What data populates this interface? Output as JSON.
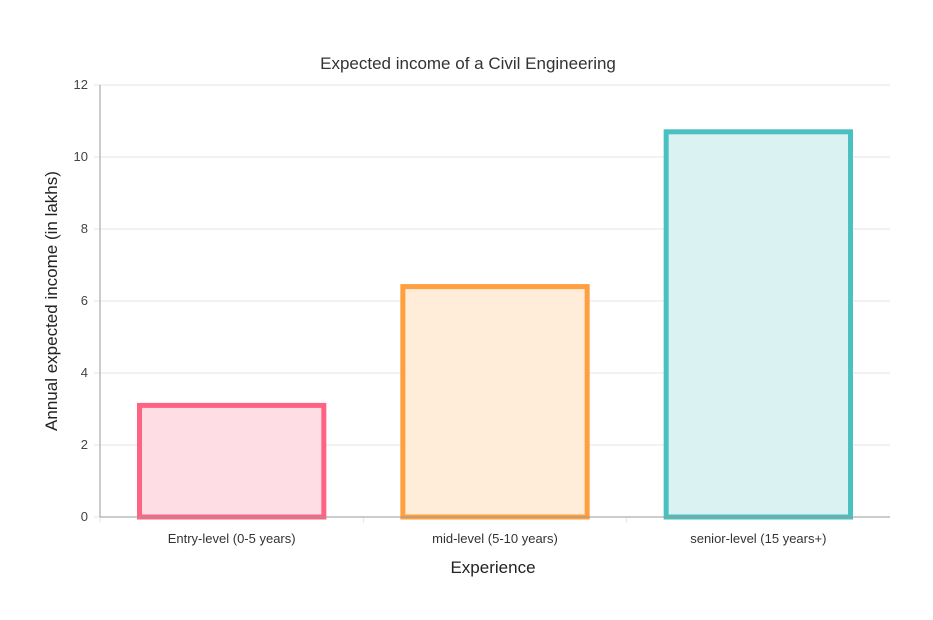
{
  "chart_data": {
    "type": "bar",
    "title": "Expected income of a Civil Engineering",
    "xlabel": "Experience",
    "ylabel": "Annual expected income (in lakhs)",
    "categories": [
      "Entry-level (0-5 years)",
      "mid-level (5-10 years)",
      "senior-level (15 years+)"
    ],
    "values": [
      3.1,
      6.4,
      10.7
    ],
    "ylim": [
      0,
      12
    ],
    "yticks": [
      "0",
      "2",
      "4",
      "6",
      "8",
      "10",
      "12"
    ],
    "grid": true,
    "legend": "none",
    "colors": [
      {
        "border": "#ff6384",
        "fill": "#ffdde4"
      },
      {
        "border": "#ff9f40",
        "fill": "#ffecd9"
      },
      {
        "border": "#4bc0c0",
        "fill": "#dbf2f2"
      }
    ]
  }
}
